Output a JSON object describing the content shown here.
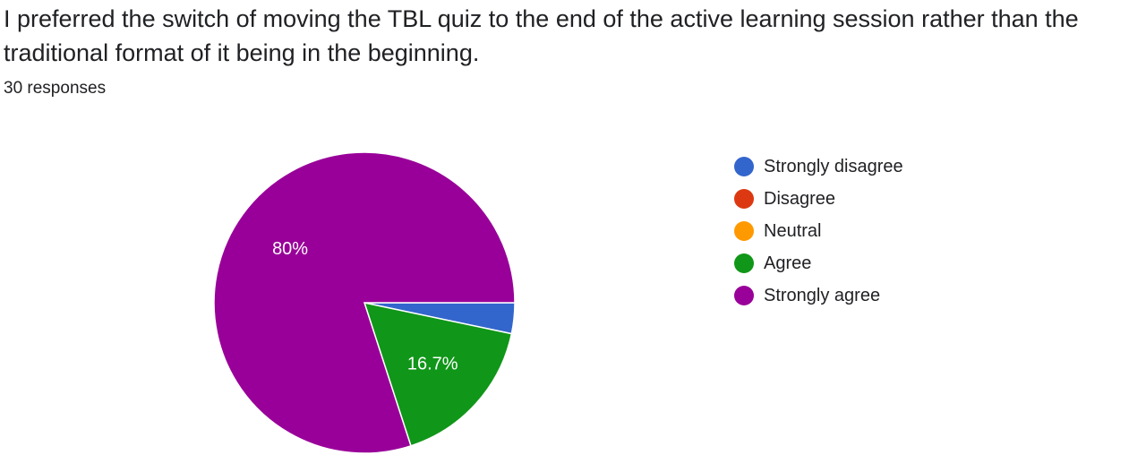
{
  "question": {
    "title": "I preferred the switch of moving the TBL quiz to the end of the active learning session rather than the traditional format of it being in the beginning.",
    "responses": "30 responses"
  },
  "chart_data": {
    "type": "pie",
    "categories": [
      "Strongly disagree",
      "Disagree",
      "Neutral",
      "Agree",
      "Strongly agree"
    ],
    "values": [
      3.3,
      0,
      0,
      16.7,
      80
    ],
    "value_labels": [
      "",
      "",
      "",
      "16.7%",
      "80%"
    ],
    "colors": [
      "#3366cc",
      "#dc3912",
      "#ff9900",
      "#109618",
      "#990099"
    ],
    "title": "",
    "legend_position": "right",
    "start_angle": "3 o'clock",
    "direction": "clockwise"
  }
}
